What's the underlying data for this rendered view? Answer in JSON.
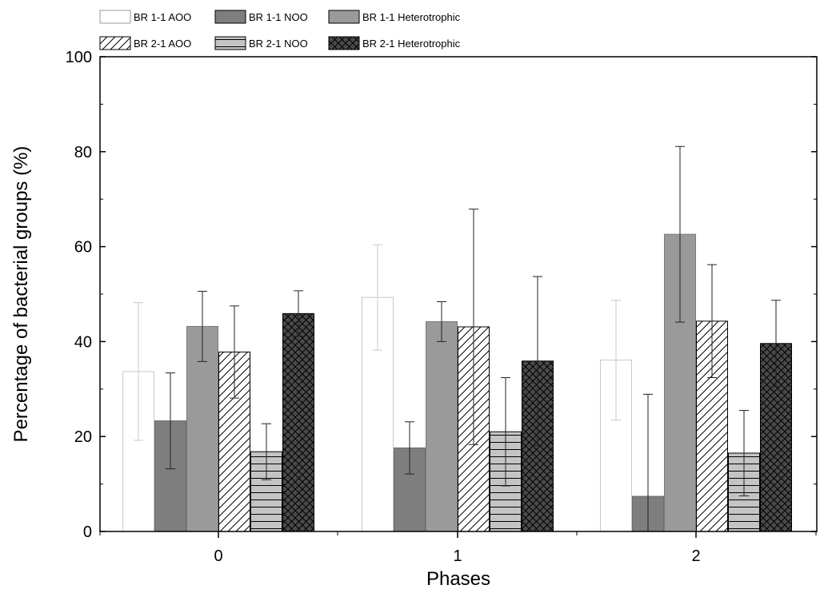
{
  "chart_data": {
    "type": "bar",
    "title": "",
    "xlabel": "Phases",
    "ylabel": "Percentage of bacterial groups (%)",
    "categories": [
      "0",
      "1",
      "2"
    ],
    "ylim": [
      0,
      100
    ],
    "yticks": [
      0,
      20,
      40,
      60,
      80,
      100
    ],
    "grid": false,
    "legend_position": "top",
    "series": [
      {
        "name": "BR 1-1 AOO",
        "values": [
          33.7,
          49.3,
          36.1
        ],
        "errors": [
          14.5,
          11.1,
          12.6
        ],
        "color": "#ffffff",
        "stroke": "#c8c8c8",
        "pattern": "none"
      },
      {
        "name": "BR 1-1 NOO",
        "values": [
          23.3,
          17.6,
          7.4
        ],
        "errors": [
          10.1,
          5.5,
          21.5
        ],
        "color": "#7e7e7e",
        "stroke": "#6a6a6a",
        "pattern": "none"
      },
      {
        "name": "BR 1-1 Heterotrophic",
        "values": [
          43.2,
          44.2,
          62.6
        ],
        "errors": [
          7.4,
          4.2,
          18.5
        ],
        "color": "#9a9a9a",
        "stroke": "#7a7a7a",
        "pattern": "none"
      },
      {
        "name": "BR 2-1 AOO",
        "values": [
          37.8,
          43.1,
          44.3
        ],
        "errors": [
          9.7,
          24.8,
          11.9
        ],
        "color": "#ffffff",
        "stroke": "#000000",
        "pattern": "diagonal"
      },
      {
        "name": "BR 2-1 NOO",
        "values": [
          16.8,
          21.0,
          16.5
        ],
        "errors": [
          5.9,
          11.4,
          9.0
        ],
        "color": "#c4c4c4",
        "stroke": "#000000",
        "pattern": "horizontal"
      },
      {
        "name": "BR 2-1 Heterotrophic",
        "values": [
          45.9,
          35.9,
          39.6
        ],
        "errors": [
          4.8,
          17.8,
          9.1
        ],
        "color": "#4a4a4a",
        "stroke": "#000000",
        "pattern": "crosshatch"
      }
    ]
  }
}
